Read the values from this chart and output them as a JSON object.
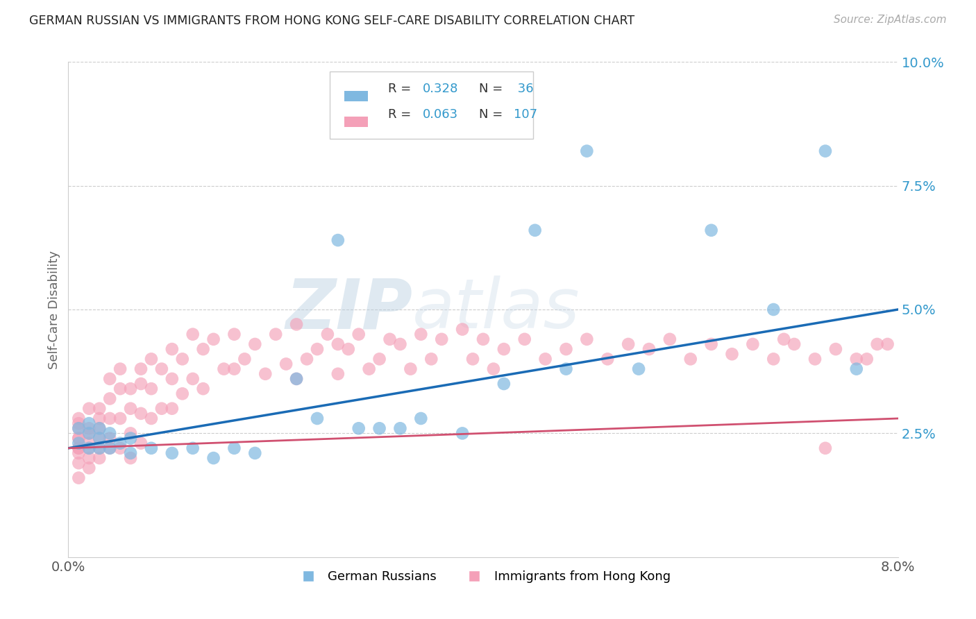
{
  "title": "GERMAN RUSSIAN VS IMMIGRANTS FROM HONG KONG SELF-CARE DISABILITY CORRELATION CHART",
  "source": "Source: ZipAtlas.com",
  "ylabel": "Self-Care Disability",
  "xlim": [
    0.0,
    0.08
  ],
  "ylim": [
    0.0,
    0.1
  ],
  "ytick_vals": [
    0.025,
    0.05,
    0.075,
    0.1
  ],
  "ytick_labels": [
    "2.5%",
    "5.0%",
    "7.5%",
    "10.0%"
  ],
  "xtick_vals": [
    0.0,
    0.08
  ],
  "xtick_labels": [
    "0.0%",
    "8.0%"
  ],
  "color_blue": "#7fb8e0",
  "color_pink": "#f4a0b8",
  "color_blue_line": "#1a6bb5",
  "color_pink_line": "#d05070",
  "color_blue_text": "#3399cc",
  "color_grid": "#cccccc",
  "watermark_zip": "ZIP",
  "watermark_atlas": "atlas",
  "r_blue": "0.328",
  "n_blue": "36",
  "r_pink": "0.063",
  "n_pink": "107",
  "label_blue": "German Russians",
  "label_pink": "Immigrants from Hong Kong",
  "blue_x": [
    0.001,
    0.001,
    0.002,
    0.002,
    0.002,
    0.003,
    0.003,
    0.003,
    0.004,
    0.004,
    0.005,
    0.006,
    0.006,
    0.008,
    0.01,
    0.012,
    0.014,
    0.016,
    0.018,
    0.022,
    0.024,
    0.026,
    0.028,
    0.03,
    0.032,
    0.034,
    0.038,
    0.042,
    0.045,
    0.048,
    0.05,
    0.055,
    0.062,
    0.068,
    0.073,
    0.076
  ],
  "blue_y": [
    0.026,
    0.023,
    0.027,
    0.022,
    0.025,
    0.026,
    0.022,
    0.024,
    0.025,
    0.022,
    0.023,
    0.024,
    0.021,
    0.022,
    0.021,
    0.022,
    0.02,
    0.022,
    0.021,
    0.036,
    0.028,
    0.064,
    0.026,
    0.026,
    0.026,
    0.028,
    0.025,
    0.035,
    0.066,
    0.038,
    0.082,
    0.038,
    0.066,
    0.05,
    0.082,
    0.038
  ],
  "pink_x": [
    0.001,
    0.001,
    0.001,
    0.001,
    0.001,
    0.001,
    0.001,
    0.001,
    0.001,
    0.001,
    0.002,
    0.002,
    0.002,
    0.002,
    0.002,
    0.002,
    0.002,
    0.003,
    0.003,
    0.003,
    0.003,
    0.003,
    0.003,
    0.004,
    0.004,
    0.004,
    0.004,
    0.004,
    0.005,
    0.005,
    0.005,
    0.005,
    0.006,
    0.006,
    0.006,
    0.006,
    0.007,
    0.007,
    0.007,
    0.007,
    0.008,
    0.008,
    0.008,
    0.009,
    0.009,
    0.01,
    0.01,
    0.01,
    0.011,
    0.011,
    0.012,
    0.012,
    0.013,
    0.013,
    0.014,
    0.015,
    0.016,
    0.016,
    0.017,
    0.018,
    0.019,
    0.02,
    0.021,
    0.022,
    0.022,
    0.023,
    0.024,
    0.025,
    0.026,
    0.026,
    0.027,
    0.028,
    0.029,
    0.03,
    0.031,
    0.032,
    0.033,
    0.034,
    0.035,
    0.036,
    0.038,
    0.039,
    0.04,
    0.041,
    0.042,
    0.044,
    0.046,
    0.048,
    0.05,
    0.052,
    0.054,
    0.056,
    0.058,
    0.06,
    0.062,
    0.064,
    0.066,
    0.068,
    0.07,
    0.072,
    0.074,
    0.076,
    0.078,
    0.069,
    0.079,
    0.073,
    0.077
  ],
  "pink_y": [
    0.027,
    0.024,
    0.022,
    0.019,
    0.016,
    0.026,
    0.022,
    0.024,
    0.028,
    0.021,
    0.03,
    0.025,
    0.02,
    0.022,
    0.018,
    0.026,
    0.023,
    0.028,
    0.024,
    0.022,
    0.03,
    0.026,
    0.02,
    0.032,
    0.028,
    0.022,
    0.024,
    0.036,
    0.034,
    0.028,
    0.022,
    0.038,
    0.03,
    0.025,
    0.02,
    0.034,
    0.035,
    0.029,
    0.023,
    0.038,
    0.04,
    0.034,
    0.028,
    0.038,
    0.03,
    0.042,
    0.036,
    0.03,
    0.04,
    0.033,
    0.045,
    0.036,
    0.042,
    0.034,
    0.044,
    0.038,
    0.045,
    0.038,
    0.04,
    0.043,
    0.037,
    0.045,
    0.039,
    0.047,
    0.036,
    0.04,
    0.042,
    0.045,
    0.043,
    0.037,
    0.042,
    0.045,
    0.038,
    0.04,
    0.044,
    0.043,
    0.038,
    0.045,
    0.04,
    0.044,
    0.046,
    0.04,
    0.044,
    0.038,
    0.042,
    0.044,
    0.04,
    0.042,
    0.044,
    0.04,
    0.043,
    0.042,
    0.044,
    0.04,
    0.043,
    0.041,
    0.043,
    0.04,
    0.043,
    0.04,
    0.042,
    0.04,
    0.043,
    0.044,
    0.043,
    0.022,
    0.04
  ]
}
